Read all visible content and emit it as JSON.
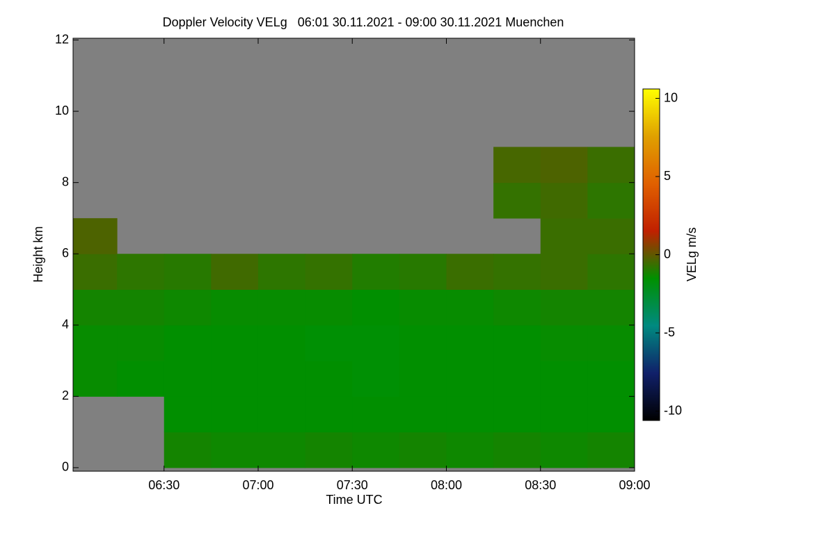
{
  "chart_data": {
    "type": "heatmap",
    "title": "Doppler Velocity VELg   06:01 30.11.2021 - 09:00 30.11.2021 Muenchen",
    "x_label": "Time UTC",
    "y_label": "Height km",
    "colorbar_label": "VELg m/s",
    "background_color": "#808080",
    "colormap": [
      "#000000",
      "#10206a",
      "#008a80",
      "#009000",
      "#c02000",
      "#e06000",
      "#e0a000",
      "#ffff00"
    ],
    "xlim": [
      6.0167,
      9.0
    ],
    "xticks": [
      {
        "value": 6.5,
        "label": "06:30"
      },
      {
        "value": 7.0,
        "label": "07:00"
      },
      {
        "value": 7.5,
        "label": "07:30"
      },
      {
        "value": 8.0,
        "label": "08:00"
      },
      {
        "value": 8.5,
        "label": "08:30"
      },
      {
        "value": 9.0,
        "label": "09:00"
      }
    ],
    "ylim": [
      -0.1,
      12.05
    ],
    "yticks": [
      0,
      2,
      4,
      6,
      8,
      10,
      12
    ],
    "zlim": [
      -10.6,
      10.6
    ],
    "zticks": [
      -10,
      -5,
      0,
      5,
      10
    ],
    "x": [
      6.125,
      6.375,
      6.625,
      6.875,
      7.125,
      7.375,
      7.625,
      7.875,
      8.125,
      8.375,
      8.625,
      8.875
    ],
    "y": [
      0.5,
      1.5,
      2.5,
      3.5,
      4.5,
      5.5,
      6.5,
      7.5,
      8.5,
      9.5,
      10.5,
      11.5
    ],
    "z": [
      [
        null,
        null,
        -1.2,
        -1.3,
        -1.3,
        -1.2,
        -1.3,
        -1.2,
        -1.3,
        -1.2,
        -1.3,
        -1.2
      ],
      [
        null,
        null,
        -1.5,
        -1.5,
        -1.5,
        -1.5,
        -1.5,
        -1.5,
        -1.5,
        -1.5,
        -1.5,
        -1.5
      ],
      [
        -1.4,
        -1.5,
        -1.5,
        -1.5,
        -1.5,
        -1.5,
        -1.6,
        -1.5,
        -1.5,
        -1.5,
        -1.5,
        -1.5
      ],
      [
        -1.4,
        -1.4,
        -1.5,
        -1.5,
        -1.5,
        -1.6,
        -1.6,
        -1.5,
        -1.5,
        -1.5,
        -1.4,
        -1.4
      ],
      [
        -1.2,
        -1.2,
        -1.3,
        -1.4,
        -1.4,
        -1.4,
        -1.5,
        -1.4,
        -1.4,
        -1.3,
        -1.2,
        -1.2
      ],
      [
        -0.6,
        -0.8,
        -0.9,
        -0.5,
        -0.8,
        -0.7,
        -1.0,
        -0.9,
        -0.6,
        -0.7,
        -0.6,
        -0.8
      ],
      [
        -0.3,
        null,
        null,
        null,
        null,
        null,
        null,
        null,
        null,
        null,
        -0.6,
        -0.6
      ],
      [
        null,
        null,
        null,
        null,
        null,
        null,
        null,
        null,
        null,
        -0.7,
        -0.5,
        -0.8
      ],
      [
        null,
        null,
        null,
        null,
        null,
        null,
        null,
        null,
        null,
        -0.4,
        -0.3,
        -0.6
      ],
      [
        null,
        null,
        null,
        null,
        null,
        null,
        null,
        null,
        null,
        null,
        null,
        null
      ],
      [
        null,
        null,
        null,
        null,
        null,
        null,
        null,
        null,
        null,
        null,
        null,
        null
      ],
      [
        null,
        null,
        null,
        null,
        null,
        null,
        null,
        null,
        null,
        null,
        null,
        null
      ]
    ]
  }
}
